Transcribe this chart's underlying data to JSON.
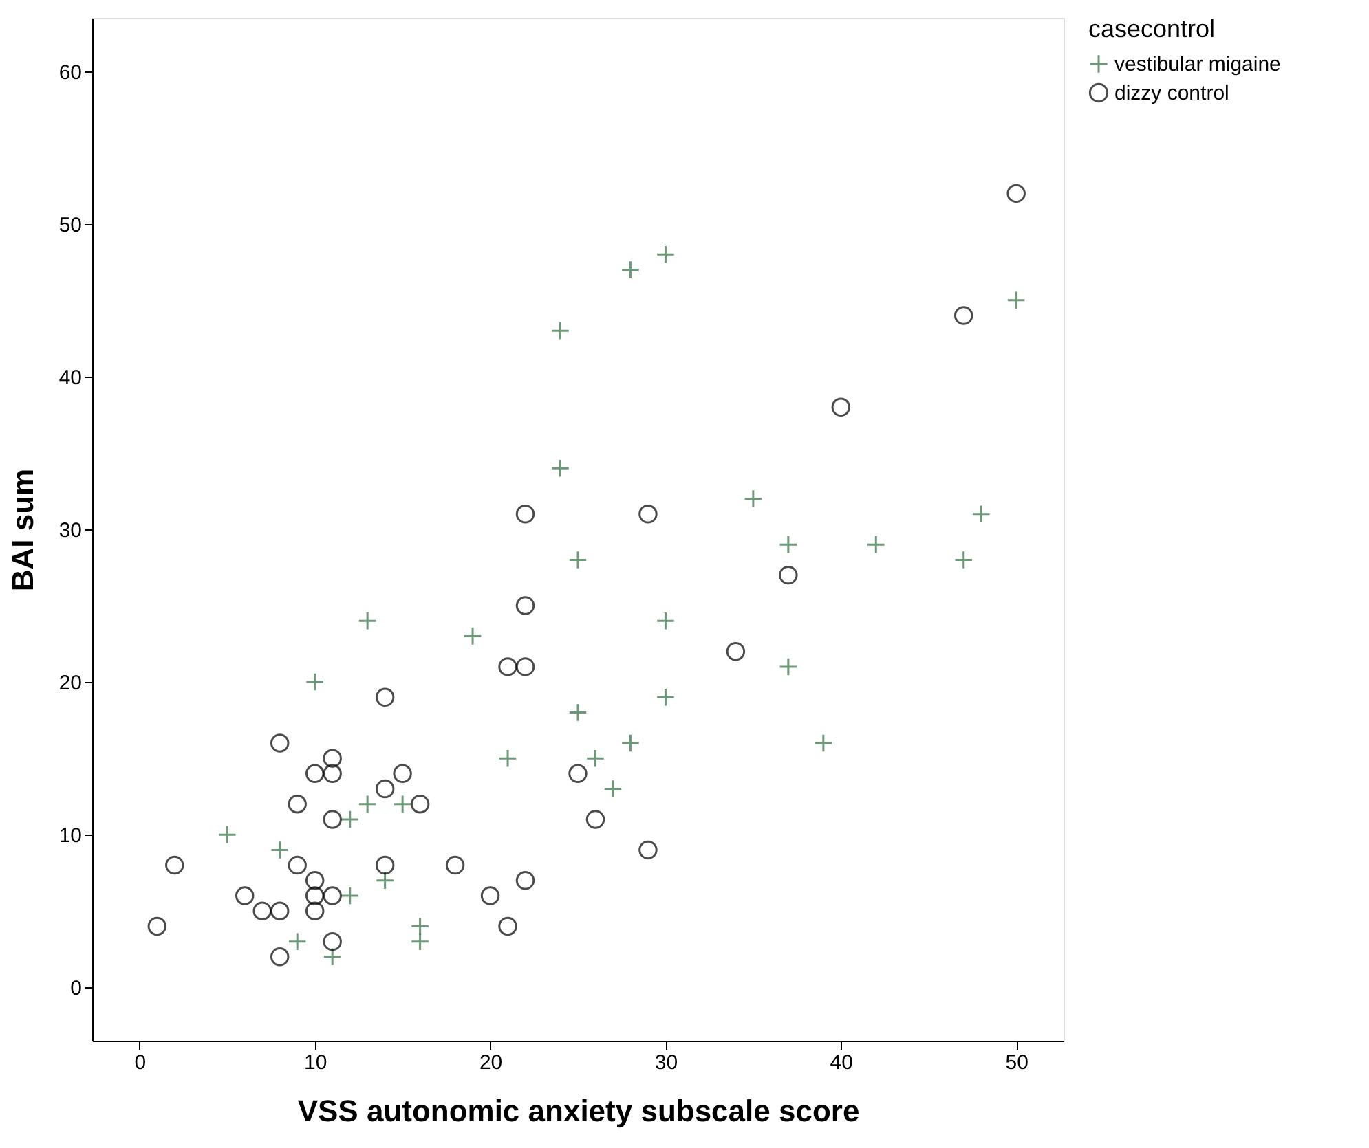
{
  "chart_data": {
    "type": "scatter",
    "xlabel": "VSS autonomic anxiety subscale score",
    "ylabel": "BAI sum",
    "legend_title": "casecontrol",
    "legend": "top right",
    "grid": false,
    "xlim": [
      -2.7,
      52.7
    ],
    "ylim": [
      -3.5,
      63.5
    ],
    "xticks": [
      0,
      10,
      20,
      30,
      40,
      50
    ],
    "yticks": [
      0,
      10,
      20,
      30,
      40,
      50,
      60
    ],
    "series": [
      {
        "name": "vestibular migaine",
        "color": "#2e6e3e",
        "marker": "cross",
        "x": [
          5,
          8,
          9,
          10,
          11,
          12,
          12,
          13,
          13,
          14,
          15,
          16,
          16,
          19,
          21,
          24,
          24,
          25,
          25,
          26,
          27,
          28,
          28,
          30,
          30,
          30,
          35,
          37,
          37,
          39,
          42,
          47,
          48,
          50
        ],
        "values": [
          10,
          9,
          3,
          20,
          2,
          11,
          6,
          12,
          24,
          7,
          12,
          4,
          3,
          23,
          15,
          43,
          34,
          28,
          18,
          15,
          13,
          47,
          16,
          48,
          24,
          19,
          32,
          29,
          21,
          16,
          29,
          28,
          31,
          45
        ]
      },
      {
        "name": "dizzy control",
        "color": "#000000",
        "marker": "circle",
        "x": [
          1,
          2,
          6,
          7,
          8,
          8,
          8,
          9,
          9,
          10,
          10,
          10,
          10,
          11,
          11,
          11,
          11,
          11,
          14,
          14,
          14,
          15,
          16,
          18,
          20,
          21,
          21,
          22,
          22,
          22,
          22,
          25,
          26,
          29,
          29,
          34,
          37,
          40,
          47,
          50
        ],
        "values": [
          4,
          8,
          6,
          5,
          16,
          5,
          2,
          12,
          8,
          14,
          7,
          6,
          5,
          15,
          14,
          11,
          6,
          3,
          19,
          13,
          8,
          14,
          12,
          8,
          6,
          21,
          4,
          31,
          25,
          21,
          7,
          14,
          11,
          31,
          9,
          22,
          27,
          38,
          44,
          52
        ]
      }
    ]
  }
}
